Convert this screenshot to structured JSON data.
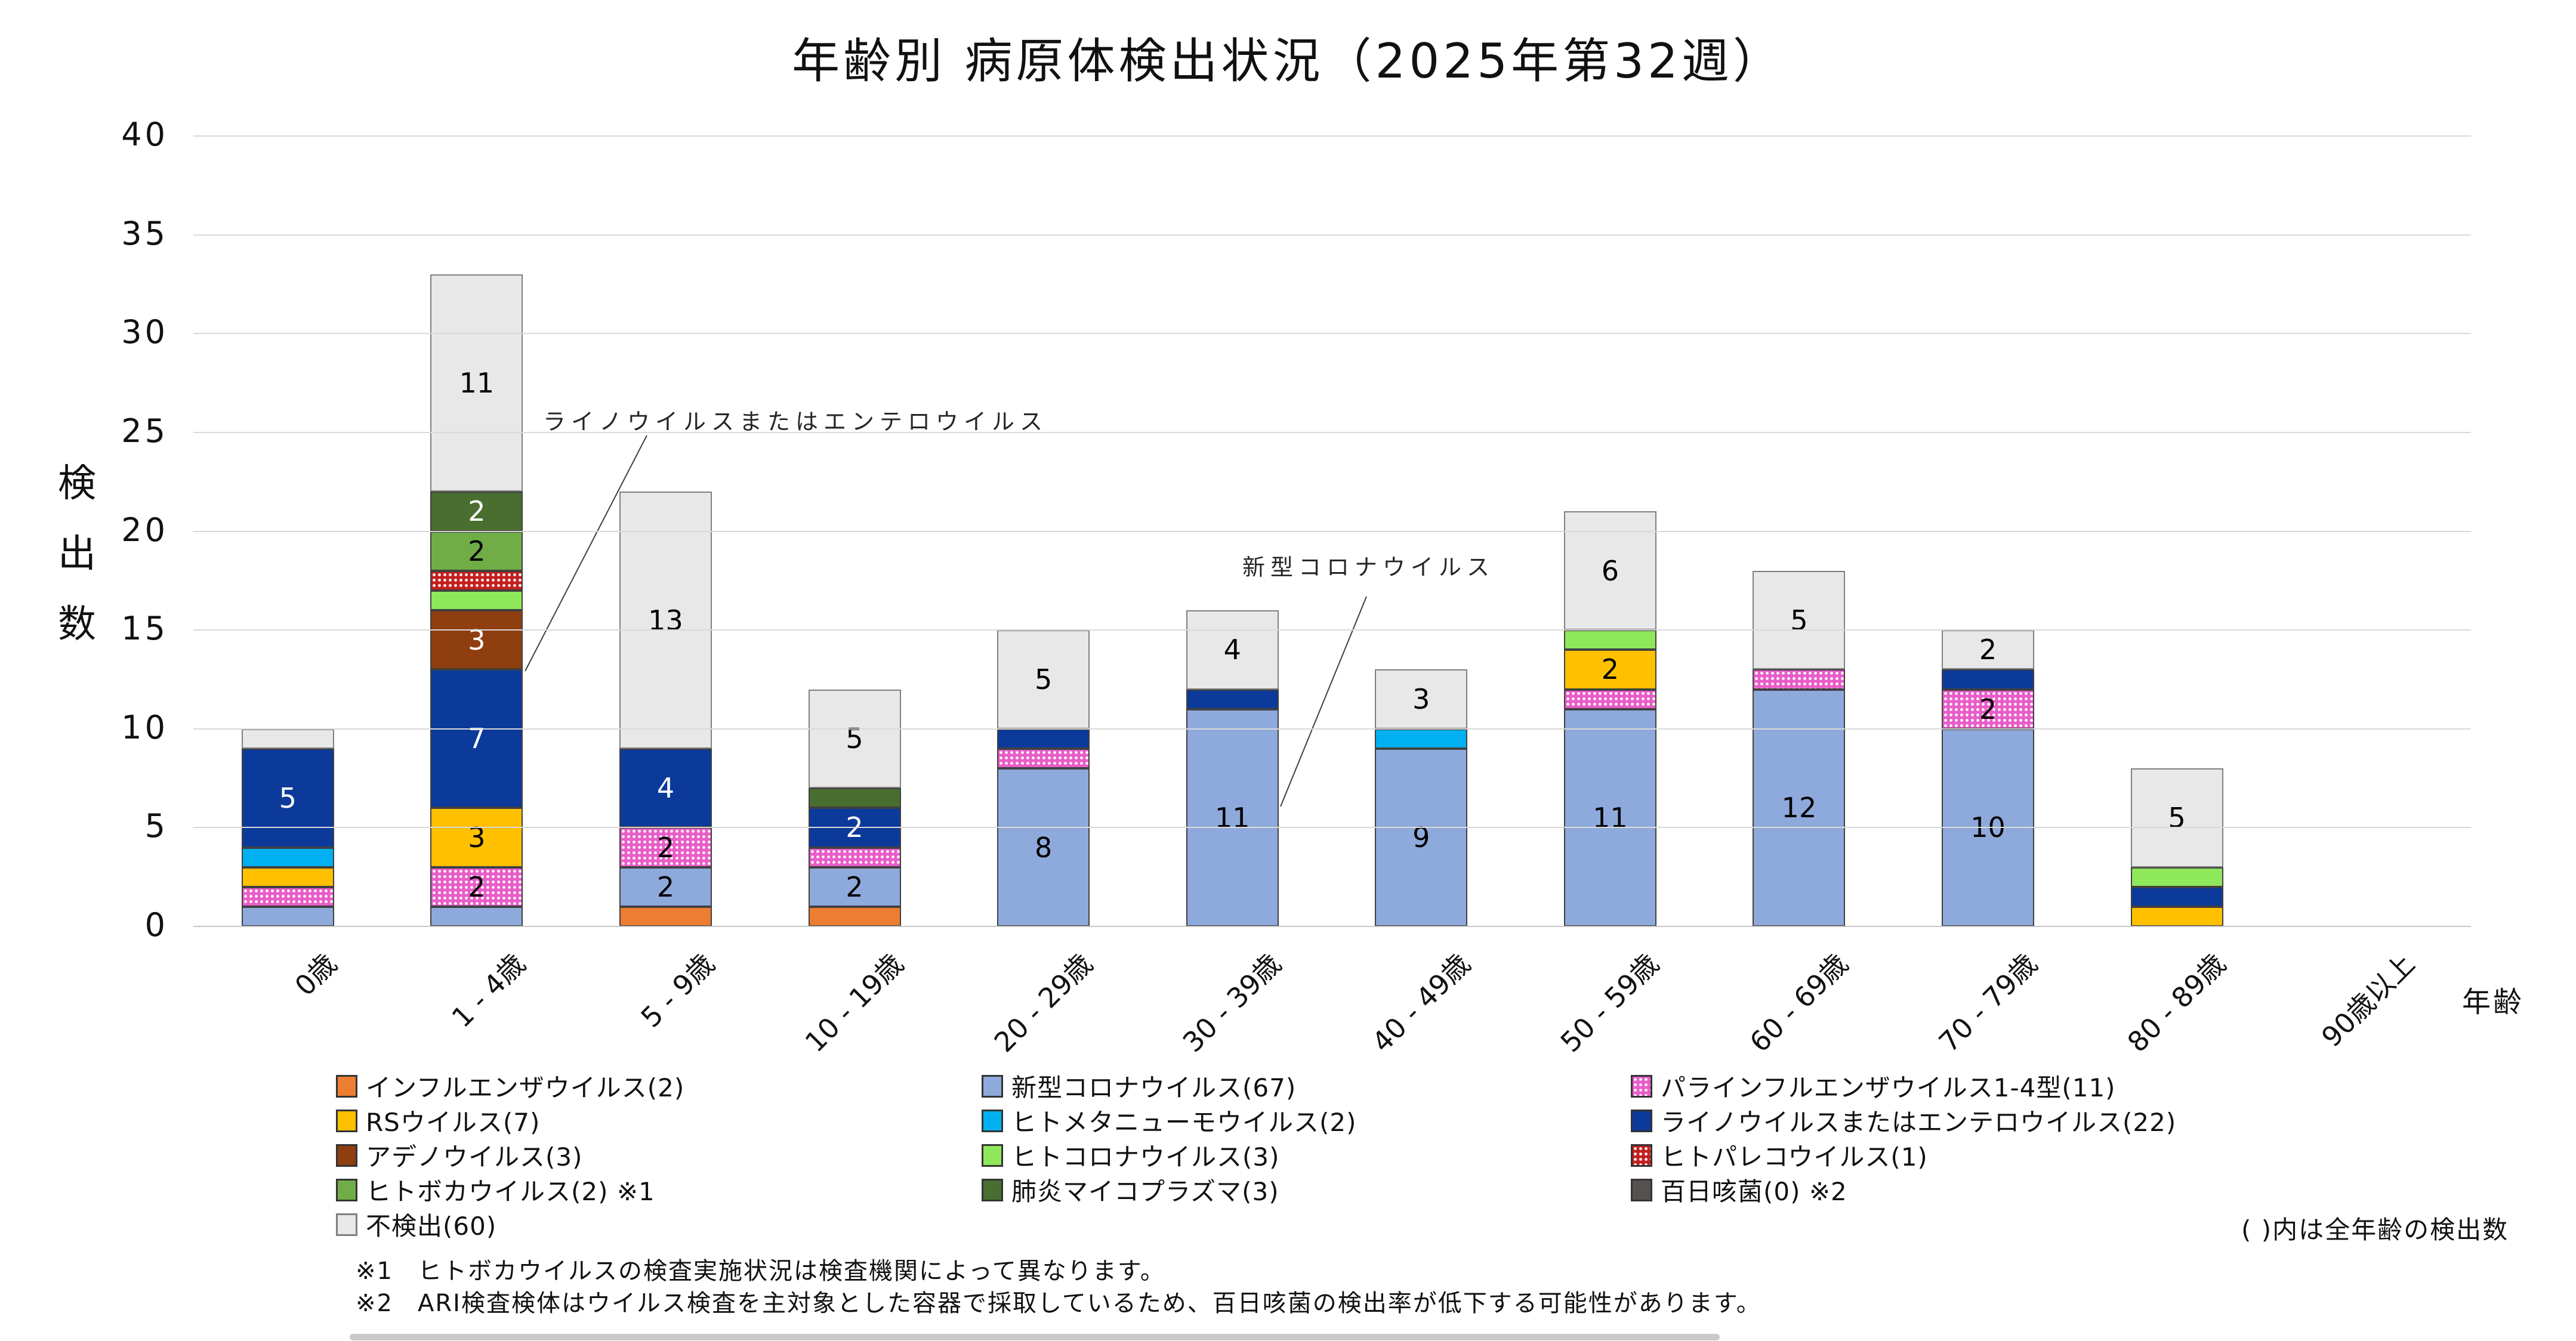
{
  "chart_data": {
    "type": "bar",
    "stacked": true,
    "title": "年齢別 病原体検出状況（2025年第32週）",
    "ylabel": "検出数",
    "ylabel_chars": [
      "検",
      "出",
      "数"
    ],
    "xlabel": "年齢",
    "ylim": [
      0,
      40
    ],
    "ytick_interval": 5,
    "yticks": [
      "0",
      "5",
      "10",
      "15",
      "20",
      "25",
      "30",
      "35",
      "40"
    ],
    "grid": true,
    "value_label_min": 2,
    "legend_position": "bottom",
    "legend_columns": 3,
    "categories": [
      "0歳",
      "1 - 4歳",
      "5 - 9歳",
      "10 - 19歳",
      "20 - 29歳",
      "30 - 39歳",
      "40 - 49歳",
      "50 - 59歳",
      "60 - 69歳",
      "70 - 79歳",
      "80 - 89歳",
      "90歳以上"
    ],
    "series": [
      {
        "name": "インフルエンザウイルス",
        "legend_label": "インフルエンザウイルス(2)",
        "color": "#ED7D31",
        "pattern": "solid",
        "label_color": "#000000",
        "values": [
          0,
          0,
          1,
          1,
          0,
          0,
          0,
          0,
          0,
          0,
          0,
          0
        ]
      },
      {
        "name": "新型コロナウイルス",
        "legend_label": "新型コロナウイルス(67)",
        "color": "#8EA9DB",
        "pattern": "solid",
        "label_color": "#000000",
        "values": [
          1,
          1,
          2,
          2,
          8,
          11,
          9,
          11,
          12,
          10,
          0,
          0
        ]
      },
      {
        "name": "パラインフルエンザウイルス1-4型",
        "legend_label": "パラインフルエンザウイルス1-4型(11)",
        "color": "#E85DC8",
        "pattern": "dots-white",
        "label_color": "#000000",
        "values": [
          1,
          2,
          2,
          1,
          1,
          0,
          0,
          1,
          1,
          2,
          0,
          0
        ]
      },
      {
        "name": "RSウイルス",
        "legend_label": "RSウイルス(7)",
        "color": "#FFC000",
        "pattern": "solid",
        "label_color": "#000000",
        "values": [
          1,
          3,
          0,
          0,
          0,
          0,
          0,
          2,
          0,
          0,
          1,
          0
        ]
      },
      {
        "name": "ヒトメタニューモウイルス",
        "legend_label": "ヒトメタニューモウイルス(2)",
        "color": "#00B0F0",
        "pattern": "solid",
        "label_color": "#000000",
        "values": [
          1,
          0,
          0,
          0,
          0,
          0,
          1,
          0,
          0,
          0,
          0,
          0
        ]
      },
      {
        "name": "ライノウイルスまたはエンテロウイルス",
        "legend_label": "ライノウイルスまたはエンテロウイルス(22)",
        "color": "#0C3A9B",
        "pattern": "solid",
        "label_color": "#FFFFFF",
        "values": [
          5,
          7,
          4,
          2,
          1,
          1,
          0,
          0,
          0,
          1,
          1,
          0
        ]
      },
      {
        "name": "アデノウイルス",
        "legend_label": "アデノウイルス(3)",
        "color": "#8F3E10",
        "pattern": "solid",
        "label_color": "#FFFFFF",
        "values": [
          0,
          3,
          0,
          0,
          0,
          0,
          0,
          0,
          0,
          0,
          0,
          0
        ]
      },
      {
        "name": "ヒトコロナウイルス",
        "legend_label": "ヒトコロナウイルス(3)",
        "color": "#8FE85A",
        "pattern": "solid",
        "label_color": "#000000",
        "values": [
          0,
          1,
          0,
          0,
          0,
          0,
          0,
          1,
          0,
          0,
          1,
          0
        ]
      },
      {
        "name": "ヒトパレコウイルス",
        "legend_label": "ヒトパレコウイルス(1)",
        "color": "#C42020",
        "pattern": "dots-white",
        "label_color": "#000000",
        "values": [
          0,
          1,
          0,
          0,
          0,
          0,
          0,
          0,
          0,
          0,
          0,
          0
        ]
      },
      {
        "name": "ヒトボカウイルス",
        "legend_label": "ヒトボカウイルス(2) ※1",
        "color": "#70AD47",
        "pattern": "solid",
        "label_color": "#000000",
        "values": [
          0,
          2,
          0,
          0,
          0,
          0,
          0,
          0,
          0,
          0,
          0,
          0
        ]
      },
      {
        "name": "肺炎マイコプラズマ",
        "legend_label": "肺炎マイコプラズマ(3)",
        "color": "#4A6E2F",
        "pattern": "solid",
        "label_color": "#FFFFFF",
        "values": [
          0,
          2,
          0,
          1,
          0,
          0,
          0,
          0,
          0,
          0,
          0,
          0
        ]
      },
      {
        "name": "百日咳菌",
        "legend_label": "百日咳菌(0) ※2",
        "color": "#565151",
        "pattern": "solid",
        "label_color": "#FFFFFF",
        "values": [
          0,
          0,
          0,
          0,
          0,
          0,
          0,
          0,
          0,
          0,
          0,
          0
        ]
      },
      {
        "name": "不検出",
        "legend_label": "不検出(60)",
        "color": "#E9E8E8",
        "pattern": "solid",
        "border_color": "#7F7F7F",
        "label_color": "#000000",
        "values": [
          1,
          11,
          13,
          5,
          5,
          4,
          3,
          6,
          5,
          2,
          5,
          0
        ]
      }
    ],
    "annotations": [
      {
        "text": "ライノウイルスまたはエンテロウイルス",
        "target_series": "ライノウイルスまたはエンテロウイルス",
        "target_category": "1 - 4歳"
      },
      {
        "text": "新型コロナウイルス",
        "target_series": "新型コロナウイルス",
        "target_category": "30 - 39歳"
      }
    ],
    "legend_note": "( )内は全年齢の検出数",
    "footnotes": [
      {
        "marker": "※1",
        "text": "ヒトボカウイルスの検査実施状況は検査機関によって異なります。"
      },
      {
        "marker": "※2",
        "text": "ARI検査検体はウイルス検査を主対象とした容器で採取しているため、百日咳菌の検出率が低下する可能性があります。"
      }
    ]
  }
}
